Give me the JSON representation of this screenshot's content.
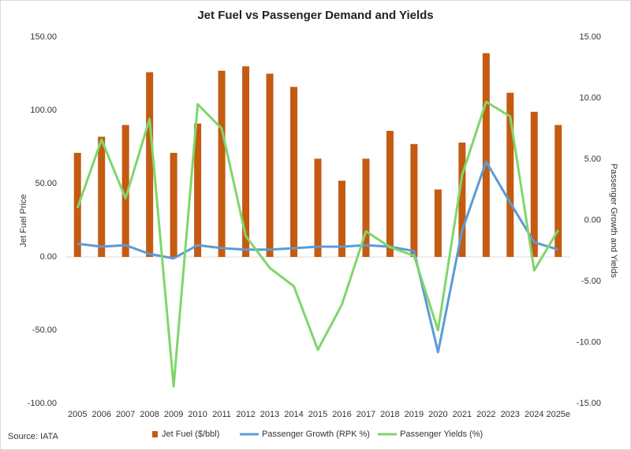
{
  "chart_data": {
    "type": "bar-line",
    "title": "Jet Fuel vs Passenger Demand and Yields",
    "y_label": "Jet Fuel Price",
    "y2_label": "Passenger Growth and Yields",
    "source": "Source: IATA",
    "categories": [
      "2005",
      "2006",
      "2007",
      "2008",
      "2009",
      "2010",
      "2011",
      "2012",
      "2013",
      "2014",
      "2015",
      "2016",
      "2017",
      "2018",
      "2019",
      "2020",
      "2021",
      "2022",
      "2023",
      "2024",
      "2025e"
    ],
    "series": [
      {
        "name": "Jet Fuel ($/bbl)",
        "type": "bar",
        "color": "#c55a11",
        "values": [
          71,
          82,
          90,
          126,
          71,
          91,
          127,
          130,
          125,
          116,
          67,
          52,
          67,
          86,
          77,
          46,
          78,
          139,
          112,
          99,
          90
        ]
      },
      {
        "name": "Passenger Growth (RPK %)",
        "type": "line",
        "color": "#5b9bd5",
        "values": [
          9,
          7,
          8,
          2,
          -1,
          8,
          6,
          5,
          5,
          6,
          7,
          7,
          8,
          7,
          4,
          -65,
          18,
          65,
          37,
          10,
          5
        ]
      },
      {
        "name": "Passenger Yields (%)",
        "type": "line",
        "axis": "y2",
        "color": "#7fd66b",
        "values": [
          1.0,
          6.6,
          1.8,
          8.3,
          -13.6,
          9.5,
          7.5,
          -1.3,
          -3.9,
          -5.4,
          -10.6,
          -6.9,
          -0.9,
          -2.2,
          -2.9,
          -9.0,
          3.7,
          9.7,
          8.5,
          -4.1,
          -0.8
        ]
      }
    ],
    "ylim": [
      -100,
      150
    ],
    "yticks": [
      {
        "value": -100,
        "label": "-100.00"
      },
      {
        "value": -50,
        "label": "-50.00"
      },
      {
        "value": 0,
        "label": "0.00"
      },
      {
        "value": 50,
        "label": "50.00"
      },
      {
        "value": 100,
        "label": "100.00"
      },
      {
        "value": 150,
        "label": "150.00"
      }
    ],
    "y2lim": [
      -15,
      15
    ],
    "y2ticks": [
      {
        "value": -15,
        "label": "-15.00"
      },
      {
        "value": -10,
        "label": "-10.00"
      },
      {
        "value": -5,
        "label": "-5.00"
      },
      {
        "value": 0,
        "label": "0.00"
      },
      {
        "value": 5,
        "label": "5.00"
      },
      {
        "value": 10,
        "label": "10.00"
      },
      {
        "value": 15,
        "label": "15.00"
      }
    ],
    "grid": false,
    "legend": "bottom"
  }
}
